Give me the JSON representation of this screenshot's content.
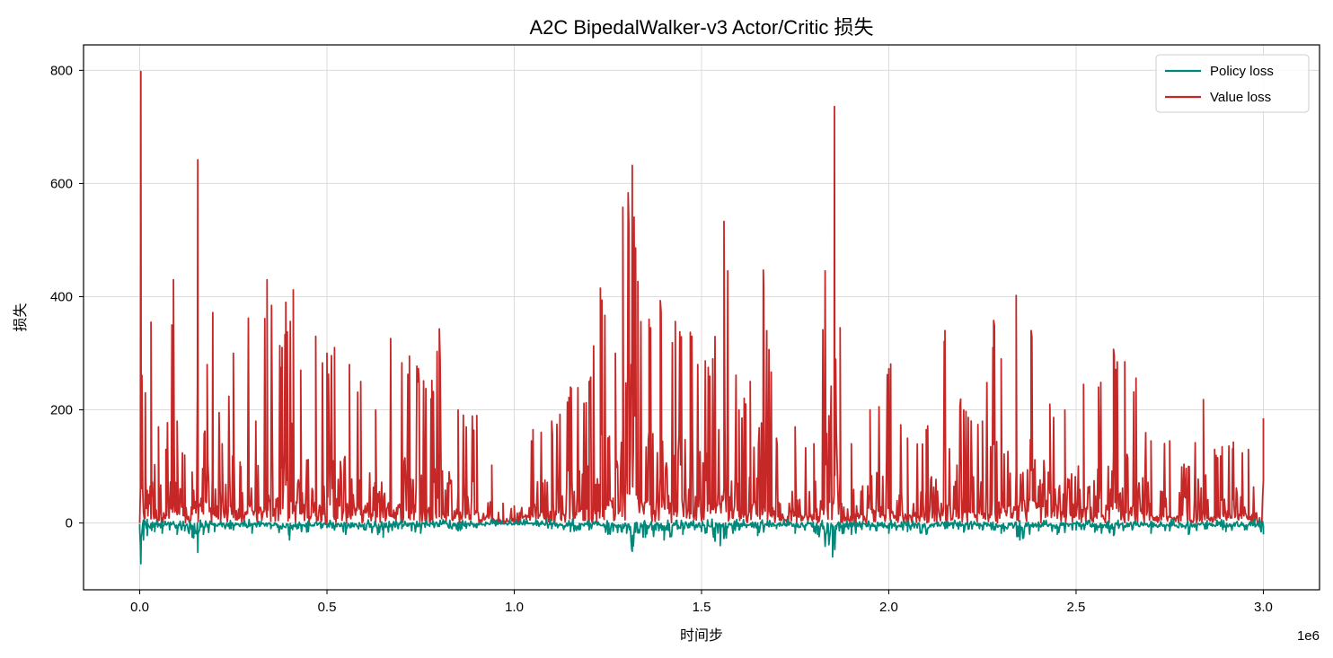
{
  "chart_data": {
    "type": "line",
    "title": "A2C BipedalWalker-v3 Actor/Critic 损失",
    "xlabel": "时间步",
    "ylabel": "损失",
    "x_offset_label": "1e6",
    "xlim": [
      -0.15,
      3.15
    ],
    "ylim": [
      -118,
      845
    ],
    "x_ticks": [
      0.0,
      0.5,
      1.0,
      1.5,
      2.0,
      2.5,
      3.0
    ],
    "x_tick_labels": [
      "0.0",
      "0.5",
      "1.0",
      "1.5",
      "2.0",
      "2.5",
      "3.0"
    ],
    "y_ticks": [
      0,
      200,
      400,
      600,
      800
    ],
    "y_tick_labels": [
      "0",
      "200",
      "400",
      "600",
      "800"
    ],
    "grid": true,
    "legend_position": "top-right",
    "series": [
      {
        "name": "Policy loss",
        "color": "#00897b",
        "x": [
          0.0,
          0.003,
          0.01,
          0.02,
          0.04,
          0.06,
          0.08,
          0.1,
          0.12,
          0.14,
          0.155,
          0.17,
          0.2,
          0.25,
          0.3,
          0.35,
          0.4,
          0.45,
          0.5,
          0.55,
          0.6,
          0.65,
          0.7,
          0.75,
          0.8,
          0.85,
          0.9,
          0.95,
          1.0,
          1.05,
          1.1,
          1.15,
          1.2,
          1.25,
          1.3,
          1.315,
          1.35,
          1.4,
          1.45,
          1.5,
          1.55,
          1.6,
          1.65,
          1.7,
          1.75,
          1.8,
          1.85,
          1.9,
          1.95,
          2.0,
          2.05,
          2.1,
          2.15,
          2.2,
          2.25,
          2.3,
          2.35,
          2.4,
          2.45,
          2.5,
          2.55,
          2.6,
          2.65,
          2.7,
          2.75,
          2.8,
          2.85,
          2.9,
          2.95,
          3.0
        ],
        "values": [
          -10,
          -72,
          -30,
          -22,
          -15,
          -18,
          -12,
          -20,
          -14,
          -25,
          -52,
          -20,
          -15,
          -12,
          -18,
          -10,
          -30,
          -15,
          -8,
          -20,
          -12,
          -25,
          -10,
          -18,
          -6,
          -14,
          -8,
          -5,
          -3,
          -4,
          -10,
          -15,
          -12,
          -20,
          -18,
          -50,
          -25,
          -30,
          -20,
          -15,
          -40,
          -12,
          -22,
          -10,
          -18,
          -15,
          -60,
          -20,
          -12,
          -18,
          -15,
          -20,
          -10,
          -16,
          -12,
          -18,
          -30,
          -14,
          -20,
          -12,
          -16,
          -22,
          -12,
          -18,
          -14,
          -20,
          -10,
          -15,
          -12,
          -20
        ]
      },
      {
        "name": "Value loss",
        "color": "#c62828",
        "x": [
          0.0,
          0.003,
          0.015,
          0.03,
          0.05,
          0.07,
          0.09,
          0.1,
          0.12,
          0.14,
          0.155,
          0.18,
          0.195,
          0.22,
          0.25,
          0.27,
          0.29,
          0.31,
          0.34,
          0.38,
          0.39,
          0.41,
          0.43,
          0.47,
          0.5,
          0.52,
          0.56,
          0.59,
          0.63,
          0.67,
          0.72,
          0.78,
          0.8,
          0.85,
          0.9,
          0.94,
          0.97,
          1.0,
          1.05,
          1.1,
          1.15,
          1.2,
          1.23,
          1.27,
          1.29,
          1.315,
          1.33,
          1.36,
          1.39,
          1.43,
          1.47,
          1.53,
          1.56,
          1.6,
          1.63,
          1.665,
          1.7,
          1.75,
          1.8,
          1.855,
          1.87,
          1.9,
          1.95,
          2.005,
          2.05,
          2.1,
          2.15,
          2.2,
          2.25,
          2.28,
          2.3,
          2.34,
          2.38,
          2.43,
          2.47,
          2.52,
          2.56,
          2.6,
          2.63,
          2.66,
          2.7,
          2.75,
          2.8,
          2.84,
          2.87,
          2.92,
          2.96,
          3.0
        ],
        "values": [
          0,
          798,
          230,
          355,
          170,
          130,
          430,
          180,
          120,
          90,
          642,
          280,
          372,
          140,
          300,
          100,
          362,
          180,
          430,
          310,
          390,
          412,
          270,
          330,
          300,
          310,
          280,
          250,
          200,
          326,
          295,
          252,
          343,
          200,
          190,
          102,
          35,
          30,
          165,
          180,
          240,
          250,
          415,
          300,
          558,
          632,
          427,
          360,
          393,
          356,
          337,
          290,
          533,
          200,
          250,
          447,
          150,
          170,
          140,
          736,
          345,
          140,
          200,
          281,
          150,
          165,
          340,
          200,
          180,
          358,
          290,
          402,
          340,
          210,
          200,
          245,
          240,
          307,
          285,
          256,
          145,
          145,
          100,
          218,
          130,
          143,
          130,
          185
        ]
      }
    ]
  }
}
